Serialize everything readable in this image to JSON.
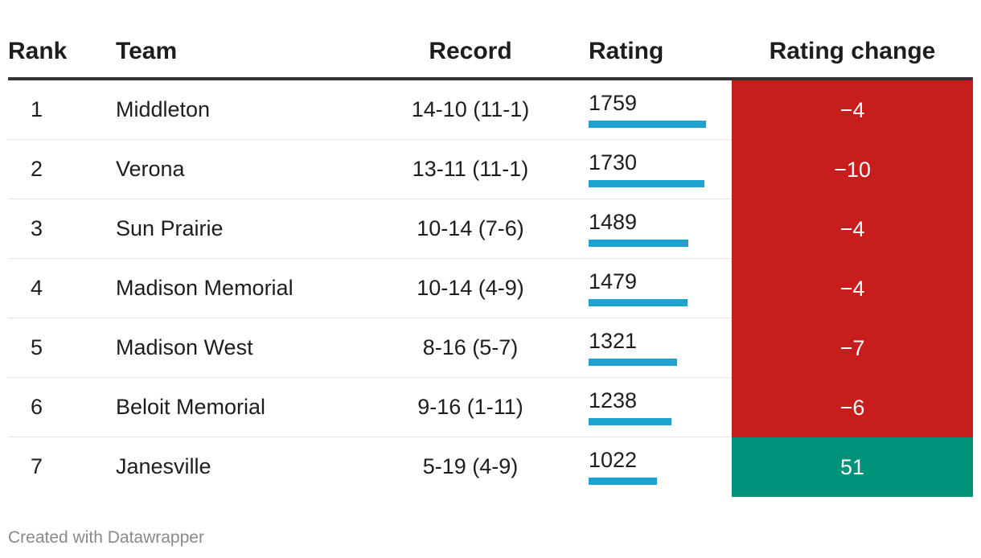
{
  "headers": {
    "rank": "Rank",
    "team": "Team",
    "record": "Record",
    "rating": "Rating",
    "change": "Rating change"
  },
  "colors": {
    "bar": "#1ea3d0",
    "negative": "#c71e1d",
    "positive": "#00937a"
  },
  "chart_data": {
    "type": "table",
    "columns": [
      "Rank",
      "Team",
      "Record",
      "Rating",
      "Rating change"
    ],
    "rating_max": 1759,
    "rows": [
      {
        "rank": "1",
        "team": "Middleton",
        "record": "14-10 (11-1)",
        "rating": 1759,
        "change": -4,
        "change_label": "−4"
      },
      {
        "rank": "2",
        "team": "Verona",
        "record": "13-11 (11-1)",
        "rating": 1730,
        "change": -10,
        "change_label": "−10"
      },
      {
        "rank": "3",
        "team": "Sun Prairie",
        "record": "10-14 (7-6)",
        "rating": 1489,
        "change": -4,
        "change_label": "−4"
      },
      {
        "rank": "4",
        "team": "Madison Memorial",
        "record": "10-14 (4-9)",
        "rating": 1479,
        "change": -4,
        "change_label": "−4"
      },
      {
        "rank": "5",
        "team": "Madison West",
        "record": "8-16 (5-7)",
        "rating": 1321,
        "change": -7,
        "change_label": "−7"
      },
      {
        "rank": "6",
        "team": "Beloit Memorial",
        "record": "9-16 (1-11)",
        "rating": 1238,
        "change": -6,
        "change_label": "−6"
      },
      {
        "rank": "7",
        "team": "Janesville",
        "record": "5-19 (4-9)",
        "rating": 1022,
        "change": 51,
        "change_label": "51"
      }
    ]
  },
  "footer": "Created with Datawrapper"
}
